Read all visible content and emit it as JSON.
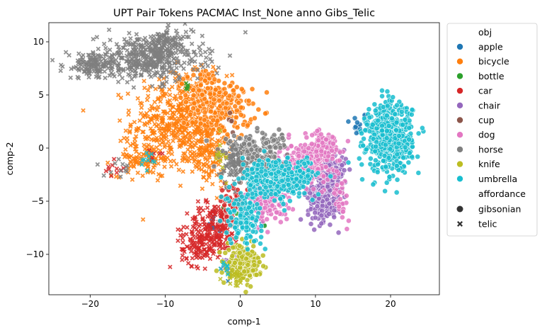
{
  "chart_data": {
    "type": "scatter",
    "title": "UPT Pair Tokens PACMAC Inst_None anno Gibs_Telic",
    "xlabel": "comp-1",
    "ylabel": "comp-2",
    "xlim": [
      -25.5,
      26.5
    ],
    "ylim": [
      -13.8,
      11.8
    ],
    "xticks": [
      -20,
      -10,
      0,
      10,
      20
    ],
    "yticks": [
      -10,
      -5,
      0,
      5,
      10
    ],
    "xtick_labels": [
      "−20",
      "−10",
      "0",
      "10",
      "20"
    ],
    "ytick_labels": [
      "−10",
      "−5",
      "0",
      "5",
      "10"
    ],
    "grid": false,
    "legend_placement": "outside-right",
    "legend": {
      "hue_title": "obj",
      "style_title": "affordance",
      "style_items": [
        {
          "name": "gibsonian",
          "marker": "circle"
        },
        {
          "name": "telic",
          "marker": "x"
        }
      ]
    },
    "series": [
      {
        "name": "apple",
        "color": "#1f77b4",
        "clusters": [
          {
            "cx": 15.5,
            "cy": 2.2,
            "sx": 0.8,
            "sy": 0.6,
            "n": 14,
            "marker": "circle"
          },
          {
            "cx": -1.8,
            "cy": -11.5,
            "sx": 0.5,
            "sy": 0.6,
            "n": 8,
            "marker": "x"
          },
          {
            "cx": 2.5,
            "cy": -6.5,
            "sx": 1.2,
            "sy": 1.0,
            "n": 10,
            "marker": "circle"
          },
          {
            "cx": -3.0,
            "cy": -6.5,
            "sx": 0.8,
            "sy": 0.8,
            "n": 8,
            "marker": "circle"
          }
        ]
      },
      {
        "name": "bicycle",
        "color": "#ff7f0e",
        "clusters": [
          {
            "cx": -8.0,
            "cy": 2.5,
            "sx": 3.2,
            "sy": 2.2,
            "n": 480,
            "marker": "x"
          },
          {
            "cx": -2.5,
            "cy": 3.5,
            "sx": 2.0,
            "sy": 1.3,
            "n": 180,
            "marker": "circle"
          },
          {
            "cx": -13.0,
            "cy": -1.0,
            "sx": 2.0,
            "sy": 0.8,
            "n": 90,
            "marker": "x"
          },
          {
            "cx": -4.5,
            "cy": -0.5,
            "sx": 1.5,
            "sy": 1.6,
            "n": 120,
            "marker": "x"
          },
          {
            "cx": -5.0,
            "cy": 6.0,
            "sx": 1.6,
            "sy": 0.8,
            "n": 60,
            "marker": "circle"
          }
        ]
      },
      {
        "name": "bottle",
        "color": "#2ca02c",
        "clusters": [
          {
            "cx": 1.5,
            "cy": -5.8,
            "sx": 1.2,
            "sy": 0.8,
            "n": 25,
            "marker": "circle"
          },
          {
            "cx": -7.5,
            "cy": 5.8,
            "sx": 0.4,
            "sy": 0.3,
            "n": 5,
            "marker": "x"
          }
        ]
      },
      {
        "name": "car",
        "color": "#d62728",
        "clusters": [
          {
            "cx": -3.5,
            "cy": -7.5,
            "sx": 1.8,
            "sy": 1.2,
            "n": 200,
            "marker": "x"
          },
          {
            "cx": -5.5,
            "cy": -9.5,
            "sx": 1.2,
            "sy": 0.8,
            "n": 80,
            "marker": "x"
          },
          {
            "cx": -1.0,
            "cy": -5.0,
            "sx": 1.0,
            "sy": 0.8,
            "n": 50,
            "marker": "circle"
          },
          {
            "cx": -17.0,
            "cy": -2.0,
            "sx": 0.8,
            "sy": 0.4,
            "n": 10,
            "marker": "x"
          },
          {
            "cx": -11.5,
            "cy": -0.5,
            "sx": 0.5,
            "sy": 0.4,
            "n": 6,
            "marker": "x"
          }
        ]
      },
      {
        "name": "chair",
        "color": "#9467bd",
        "clusters": [
          {
            "cx": 11.0,
            "cy": -4.5,
            "sx": 1.0,
            "sy": 1.2,
            "n": 260,
            "marker": "circle"
          },
          {
            "cx": 12.5,
            "cy": -2.0,
            "sx": 0.8,
            "sy": 1.0,
            "n": 80,
            "marker": "circle"
          },
          {
            "cx": -1.5,
            "cy": -10.5,
            "sx": 0.6,
            "sy": 0.5,
            "n": 12,
            "marker": "x"
          }
        ]
      },
      {
        "name": "cup",
        "color": "#8c564b",
        "clusters": [
          {
            "cx": 3.0,
            "cy": -3.0,
            "sx": 1.0,
            "sy": 1.0,
            "n": 15,
            "marker": "circle"
          },
          {
            "cx": -1.5,
            "cy": 2.5,
            "sx": 0.6,
            "sy": 0.6,
            "n": 5,
            "marker": "circle"
          }
        ]
      },
      {
        "name": "dog",
        "color": "#e377c2",
        "clusters": [
          {
            "cx": 8.5,
            "cy": -1.5,
            "sx": 1.8,
            "sy": 1.0,
            "n": 220,
            "marker": "circle"
          },
          {
            "cx": 3.5,
            "cy": -5.0,
            "sx": 1.5,
            "sy": 1.0,
            "n": 140,
            "marker": "circle"
          },
          {
            "cx": 11.0,
            "cy": 0.3,
            "sx": 1.2,
            "sy": 0.6,
            "n": 80,
            "marker": "circle"
          },
          {
            "cx": 13.5,
            "cy": -4.5,
            "sx": 0.6,
            "sy": 1.2,
            "n": 30,
            "marker": "circle"
          }
        ]
      },
      {
        "name": "horse",
        "color": "#7f7f7f",
        "clusters": [
          {
            "cx": -12.0,
            "cy": 8.5,
            "sx": 3.5,
            "sy": 1.1,
            "n": 420,
            "marker": "x"
          },
          {
            "cx": -19.5,
            "cy": 7.8,
            "sx": 2.0,
            "sy": 0.6,
            "n": 120,
            "marker": "x"
          },
          {
            "cx": -10.0,
            "cy": 10.0,
            "sx": 1.8,
            "sy": 0.5,
            "n": 60,
            "marker": "x"
          },
          {
            "cx": 1.5,
            "cy": -0.8,
            "sx": 2.0,
            "sy": 0.9,
            "n": 200,
            "marker": "circle"
          },
          {
            "cx": -1.0,
            "cy": -1.5,
            "sx": 0.8,
            "sy": 1.0,
            "n": 60,
            "marker": "x"
          },
          {
            "cx": 4.8,
            "cy": 0.5,
            "sx": 0.8,
            "sy": 0.4,
            "n": 30,
            "marker": "circle"
          },
          {
            "cx": -16.0,
            "cy": -2.0,
            "sx": 1.2,
            "sy": 0.4,
            "n": 12,
            "marker": "x"
          }
        ]
      },
      {
        "name": "knife",
        "color": "#bcbd22",
        "clusters": [
          {
            "cx": 0.5,
            "cy": -10.8,
            "sx": 1.1,
            "sy": 0.8,
            "n": 200,
            "marker": "circle"
          },
          {
            "cx": -1.0,
            "cy": -12.0,
            "sx": 0.6,
            "sy": 0.4,
            "n": 20,
            "marker": "x"
          },
          {
            "cx": -2.5,
            "cy": -0.5,
            "sx": 0.6,
            "sy": 0.8,
            "n": 12,
            "marker": "x"
          }
        ]
      },
      {
        "name": "umbrella",
        "color": "#17becf",
        "clusters": [
          {
            "cx": 19.8,
            "cy": 1.0,
            "sx": 1.5,
            "sy": 1.6,
            "n": 600,
            "marker": "circle"
          },
          {
            "cx": 4.5,
            "cy": -3.0,
            "sx": 2.3,
            "sy": 1.0,
            "n": 260,
            "marker": "circle"
          },
          {
            "cx": 0.5,
            "cy": -6.5,
            "sx": 1.2,
            "sy": 1.2,
            "n": 120,
            "marker": "circle"
          },
          {
            "cx": 8.0,
            "cy": -2.5,
            "sx": 1.0,
            "sy": 0.8,
            "n": 60,
            "marker": "circle"
          },
          {
            "cx": -12.0,
            "cy": -1.0,
            "sx": 0.5,
            "sy": 0.4,
            "n": 10,
            "marker": "x"
          },
          {
            "cx": -2.0,
            "cy": -11.0,
            "sx": 0.5,
            "sy": 0.5,
            "n": 8,
            "marker": "x"
          }
        ]
      }
    ]
  }
}
